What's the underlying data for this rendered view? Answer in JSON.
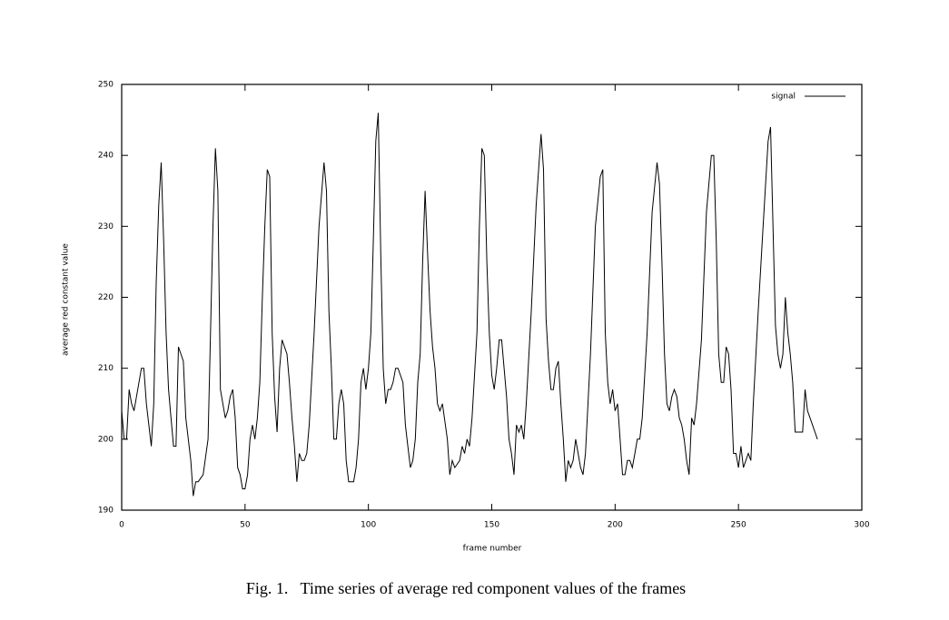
{
  "chart_data": {
    "type": "line",
    "caption": "Fig. 1.   Time series of average red component values of the frames",
    "xlabel": "frame number",
    "ylabel": "average red constant value",
    "xlim": [
      0,
      300
    ],
    "xticks": [
      0,
      50,
      100,
      150,
      200,
      250,
      300
    ],
    "ylim": [
      190,
      250
    ],
    "yticks": [
      190,
      200,
      210,
      220,
      230,
      240,
      250
    ],
    "legend": "upper right",
    "x": [
      0,
      1,
      2,
      3,
      4,
      5,
      6,
      8,
      9,
      10,
      12,
      13,
      14,
      15,
      16,
      17,
      18,
      19,
      20,
      21,
      22,
      23,
      24,
      25,
      26,
      28,
      29,
      30,
      31,
      33,
      35,
      36,
      37,
      38,
      39,
      40,
      41,
      42,
      43,
      44,
      45,
      46,
      47,
      48,
      49,
      50,
      51,
      52,
      53,
      54,
      55,
      56,
      57,
      58,
      59,
      60,
      61,
      62,
      63,
      64,
      65,
      66,
      67,
      68,
      69,
      70,
      71,
      72,
      73,
      74,
      75,
      76,
      78,
      80,
      82,
      83,
      84,
      85,
      86,
      87,
      88,
      89,
      90,
      91,
      92,
      93,
      94,
      95,
      96,
      97,
      98,
      99,
      100,
      101,
      102,
      103,
      104,
      105,
      106,
      107,
      108,
      109,
      110,
      111,
      112,
      113,
      114,
      115,
      116,
      117,
      118,
      119,
      120,
      121,
      122,
      123,
      124,
      125,
      126,
      127,
      128,
      129,
      130,
      132,
      133,
      134,
      135,
      137,
      138,
      139,
      140,
      141,
      142,
      144,
      145,
      146,
      147,
      148,
      149,
      150,
      151,
      152,
      153,
      154,
      155,
      156,
      157,
      158,
      159,
      160,
      161,
      162,
      163,
      164,
      166,
      168,
      170,
      171,
      172,
      173,
      174,
      175,
      176,
      177,
      178,
      179,
      180,
      181,
      182,
      183,
      184,
      185,
      186,
      187,
      188,
      190,
      192,
      194,
      195,
      196,
      197,
      198,
      199,
      200,
      201,
      202,
      203,
      204,
      205,
      206,
      207,
      208,
      209,
      210,
      211,
      213,
      215,
      217,
      218,
      219,
      220,
      221,
      222,
      223,
      224,
      225,
      226,
      227,
      228,
      229,
      230,
      231,
      232,
      233,
      235,
      237,
      239,
      240,
      241,
      242,
      243,
      244,
      245,
      246,
      247,
      248,
      249,
      250,
      251,
      252,
      253,
      254,
      255,
      256,
      258,
      260,
      262,
      263,
      264,
      265,
      266,
      267,
      268,
      269,
      270,
      271,
      272,
      273,
      274,
      275,
      276,
      277,
      278,
      279,
      280,
      281,
      282
    ],
    "series": [
      {
        "name": "signal",
        "color": "#000000",
        "values": [
          204,
          200,
          200,
          207,
          205,
          204,
          206,
          210,
          210,
          205,
          199,
          205,
          222,
          233,
          239,
          228,
          215,
          207,
          203,
          199,
          199,
          213,
          212,
          211,
          203,
          197,
          192,
          194,
          194,
          195,
          200,
          215,
          230,
          241,
          235,
          207,
          205,
          203,
          204,
          206,
          207,
          203,
          196,
          195,
          193,
          193,
          195,
          200,
          202,
          200,
          203,
          208,
          220,
          230,
          238,
          237,
          215,
          206,
          201,
          210,
          214,
          213,
          212,
          208,
          203,
          199,
          194,
          198,
          197,
          197,
          198,
          202,
          215,
          230,
          239,
          235,
          218,
          210,
          200,
          200,
          205,
          207,
          205,
          197,
          194,
          194,
          194,
          196,
          200,
          208,
          210,
          207,
          210,
          215,
          228,
          242,
          246,
          226,
          210,
          205,
          207,
          207,
          208,
          210,
          210,
          209,
          208,
          202,
          199,
          196,
          197,
          200,
          208,
          212,
          225,
          235,
          226,
          218,
          213,
          210,
          205,
          204,
          205,
          200,
          195,
          197,
          196,
          197,
          199,
          198,
          200,
          199,
          203,
          215,
          230,
          241,
          240,
          225,
          215,
          209,
          207,
          210,
          214,
          214,
          210,
          206,
          200,
          198,
          195,
          202,
          201,
          202,
          200,
          205,
          218,
          233,
          243,
          238,
          217,
          211,
          207,
          207,
          210,
          211,
          205,
          200,
          194,
          197,
          196,
          197,
          200,
          198,
          196,
          195,
          198,
          212,
          230,
          237,
          238,
          215,
          208,
          205,
          207,
          204,
          205,
          200,
          195,
          195,
          197,
          197,
          196,
          198,
          200,
          200,
          203,
          215,
          232,
          239,
          236,
          225,
          212,
          205,
          204,
          206,
          207,
          206,
          203,
          202,
          200,
          197,
          195,
          203,
          202,
          205,
          214,
          232,
          240,
          240,
          228,
          212,
          208,
          208,
          213,
          212,
          207,
          198,
          198,
          196,
          199,
          196,
          197,
          198,
          197,
          205,
          218,
          230,
          242,
          244,
          230,
          216,
          212,
          210,
          212,
          220,
          215,
          212,
          208,
          201,
          201,
          201,
          201,
          207,
          204,
          203,
          202,
          201,
          200
        ]
      }
    ]
  }
}
